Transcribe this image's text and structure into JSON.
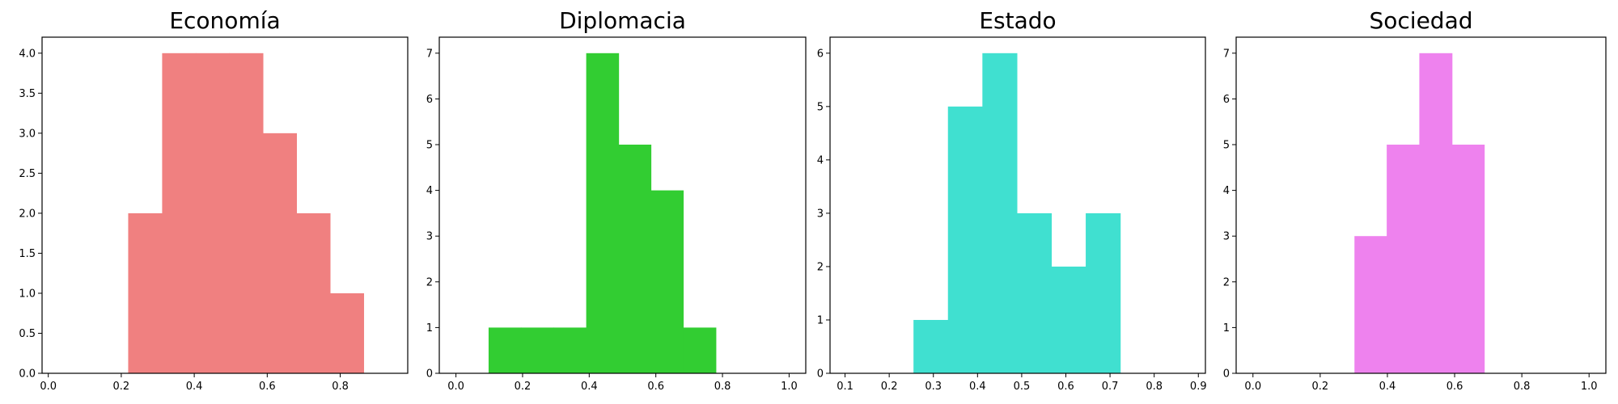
{
  "chart_data": [
    {
      "type": "bar",
      "title": "Economía",
      "xlim": [
        -0.017,
        0.985
      ],
      "ylim": [
        0,
        4.2
      ],
      "xticks": [
        0.0,
        0.2,
        0.4,
        0.6,
        0.8
      ],
      "xtick_labels": [
        "0.0",
        "0.2",
        "0.4",
        "0.6",
        "0.8"
      ],
      "yticks": [
        0,
        0.5,
        1.0,
        1.5,
        2.0,
        2.5,
        3.0,
        3.5,
        4.0
      ],
      "ytick_labels": [
        "0.0",
        "0.5",
        "1.0",
        "1.5",
        "2.0",
        "2.5",
        "3.0",
        "3.5",
        "4.0"
      ],
      "color": "#f08080",
      "bins": [
        {
          "start": 0.219,
          "end": 0.312,
          "count": 2
        },
        {
          "start": 0.312,
          "end": 0.404,
          "count": 4
        },
        {
          "start": 0.404,
          "end": 0.496,
          "count": 4
        },
        {
          "start": 0.496,
          "end": 0.588,
          "count": 4
        },
        {
          "start": 0.588,
          "end": 0.68,
          "count": 3
        },
        {
          "start": 0.68,
          "end": 0.772,
          "count": 2
        },
        {
          "start": 0.772,
          "end": 0.864,
          "count": 1
        }
      ]
    },
    {
      "type": "bar",
      "title": "Diplomacia",
      "xlim": [
        -0.05,
        1.05
      ],
      "ylim": [
        0,
        7.35
      ],
      "xticks": [
        0.0,
        0.2,
        0.4,
        0.6,
        0.8,
        1.0
      ],
      "xtick_labels": [
        "0.0",
        "0.2",
        "0.4",
        "0.6",
        "0.8",
        "1.0"
      ],
      "yticks": [
        0,
        1,
        2,
        3,
        4,
        5,
        6,
        7
      ],
      "ytick_labels": [
        "0",
        "1",
        "2",
        "3",
        "4",
        "5",
        "6",
        "7"
      ],
      "color": "#32cd32",
      "bins": [
        {
          "start": 0.098,
          "end": 0.195,
          "count": 1
        },
        {
          "start": 0.195,
          "end": 0.293,
          "count": 1
        },
        {
          "start": 0.293,
          "end": 0.391,
          "count": 1
        },
        {
          "start": 0.391,
          "end": 0.488,
          "count": 7
        },
        {
          "start": 0.488,
          "end": 0.585,
          "count": 5
        },
        {
          "start": 0.585,
          "end": 0.682,
          "count": 4
        },
        {
          "start": 0.682,
          "end": 0.78,
          "count": 1
        }
      ]
    },
    {
      "type": "bar",
      "title": "Estado",
      "xlim": [
        0.066,
        0.916
      ],
      "ylim": [
        0,
        6.3
      ],
      "xticks": [
        0.1,
        0.2,
        0.3,
        0.4,
        0.5,
        0.6,
        0.7,
        0.8,
        0.9
      ],
      "xtick_labels": [
        "0.1",
        "0.2",
        "0.3",
        "0.4",
        "0.5",
        "0.6",
        "0.7",
        "0.8",
        "0.9"
      ],
      "yticks": [
        0,
        1,
        2,
        3,
        4,
        5,
        6
      ],
      "ytick_labels": [
        "0",
        "1",
        "2",
        "3",
        "4",
        "5",
        "6"
      ],
      "color": "#40e0d0",
      "bins": [
        {
          "start": 0.255,
          "end": 0.333,
          "count": 1
        },
        {
          "start": 0.333,
          "end": 0.411,
          "count": 5
        },
        {
          "start": 0.411,
          "end": 0.489,
          "count": 6
        },
        {
          "start": 0.489,
          "end": 0.567,
          "count": 3
        },
        {
          "start": 0.567,
          "end": 0.645,
          "count": 2
        },
        {
          "start": 0.645,
          "end": 0.723,
          "count": 3
        }
      ]
    },
    {
      "type": "bar",
      "title": "Sociedad",
      "xlim": [
        -0.05,
        1.05
      ],
      "ylim": [
        0,
        7.35
      ],
      "xticks": [
        0.0,
        0.2,
        0.4,
        0.6,
        0.8,
        1.0
      ],
      "xtick_labels": [
        "0.0",
        "0.2",
        "0.4",
        "0.6",
        "0.8",
        "1.0"
      ],
      "yticks": [
        0,
        1,
        2,
        3,
        4,
        5,
        6,
        7
      ],
      "ytick_labels": [
        "0",
        "1",
        "2",
        "3",
        "4",
        "5",
        "6",
        "7"
      ],
      "color": "#ee82ee",
      "bins": [
        {
          "start": 0.302,
          "end": 0.398,
          "count": 3
        },
        {
          "start": 0.398,
          "end": 0.495,
          "count": 5
        },
        {
          "start": 0.495,
          "end": 0.592,
          "count": 7
        },
        {
          "start": 0.592,
          "end": 0.688,
          "count": 5
        }
      ]
    }
  ]
}
